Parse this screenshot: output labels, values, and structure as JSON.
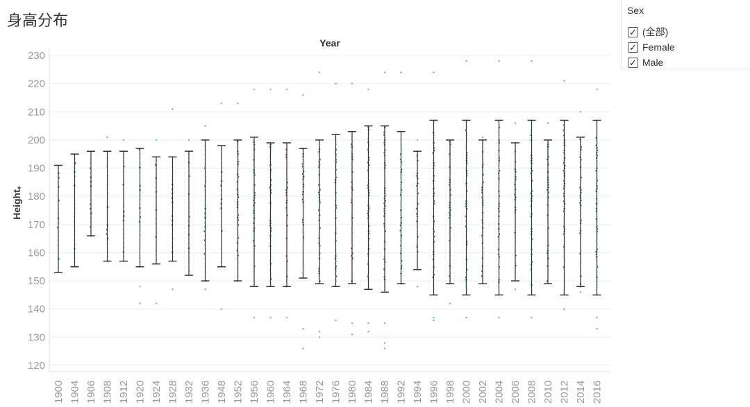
{
  "title": "身高分布",
  "filter": {
    "title": "Sex",
    "options": [
      {
        "label": "(全部)",
        "checked": true
      },
      {
        "label": "Female",
        "checked": true
      },
      {
        "label": "Male",
        "checked": true
      }
    ]
  },
  "colors": {
    "dot": "#5bb8a6",
    "dot_dark": "#2f6b66",
    "female_dot": "#e8919a",
    "range_bar": "#333333",
    "grid": "#eeeeee",
    "axis_text": "#999999"
  },
  "chart_data": {
    "type": "scatter",
    "title": "Year",
    "xlabel": "Year",
    "ylabel": "Height",
    "ylim": [
      120,
      230
    ],
    "yticks": [
      120,
      130,
      140,
      150,
      160,
      170,
      180,
      190,
      200,
      210,
      220,
      230
    ],
    "categories": [
      "1900",
      "1904",
      "1906",
      "1908",
      "1912",
      "1920",
      "1924",
      "1928",
      "1932",
      "1936",
      "1948",
      "1952",
      "1956",
      "1960",
      "1964",
      "1968",
      "1972",
      "1976",
      "1980",
      "1984",
      "1988",
      "1992",
      "1994",
      "1996",
      "1998",
      "2000",
      "2002",
      "2004",
      "2006",
      "2008",
      "2010",
      "2012",
      "2014",
      "2016"
    ],
    "range_min": [
      153,
      155,
      166,
      157,
      157,
      155,
      156,
      157,
      152,
      150,
      155,
      150,
      148,
      148,
      148,
      151,
      149,
      148,
      149,
      147,
      146,
      149,
      154,
      145,
      149,
      145,
      149,
      145,
      150,
      145,
      149,
      145,
      148,
      145
    ],
    "range_max": [
      191,
      195,
      196,
      196,
      196,
      197,
      194,
      194,
      196,
      200,
      198,
      200,
      201,
      199,
      199,
      197,
      200,
      202,
      203,
      205,
      205,
      203,
      196,
      207,
      200,
      207,
      200,
      207,
      199,
      207,
      200,
      207,
      201,
      207
    ],
    "outliers": [
      [],
      [],
      [],
      [
        201
      ],
      [
        200
      ],
      [
        142,
        148
      ],
      [
        142,
        200
      ],
      [
        211,
        147
      ],
      [
        200
      ],
      [
        205,
        147
      ],
      [
        213,
        140
      ],
      [
        213
      ],
      [
        218,
        137
      ],
      [
        218,
        137
      ],
      [
        218,
        137
      ],
      [
        216,
        133,
        126
      ],
      [
        224,
        132,
        130
      ],
      [
        220,
        136
      ],
      [
        220,
        135,
        131
      ],
      [
        218,
        135,
        132
      ],
      [
        224,
        135,
        128,
        126
      ],
      [
        224
      ],
      [
        200,
        148
      ],
      [
        224,
        137,
        136
      ],
      [
        142
      ],
      [
        228,
        137
      ],
      [
        201
      ],
      [
        228,
        137
      ],
      [
        206,
        147
      ],
      [
        228,
        137
      ],
      [
        206
      ],
      [
        221,
        140
      ],
      [
        210,
        146
      ],
      [
        218,
        137,
        133
      ]
    ]
  }
}
